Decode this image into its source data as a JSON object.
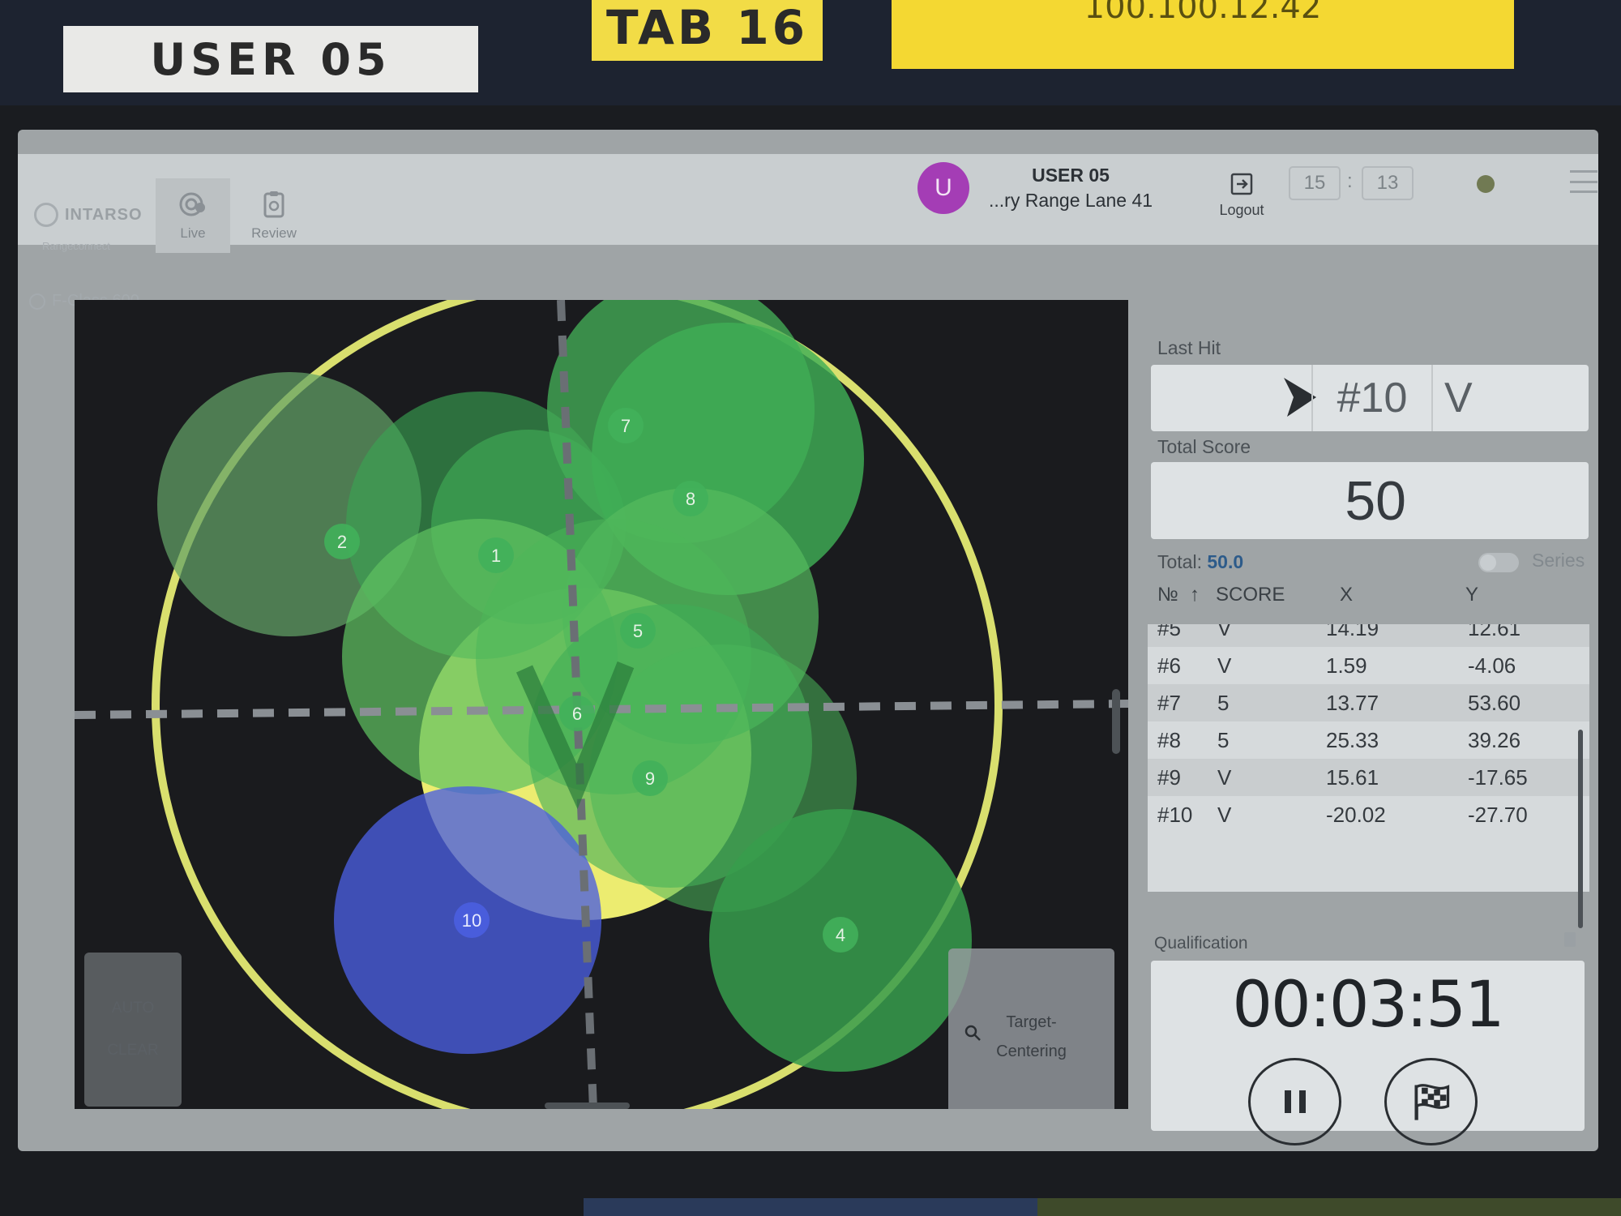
{
  "stickers": {
    "user": "USER 05",
    "tab": "TAB 16",
    "ip": "100.100.12.42"
  },
  "app": {
    "brand": "INTARSO",
    "brand_sub": "Rangeconnect",
    "nav": [
      {
        "label": "Live",
        "icon": "target-icon"
      },
      {
        "label": "Review",
        "icon": "clipboard-icon"
      }
    ],
    "user": {
      "avatar_letter": "U",
      "name": "USER 05",
      "lane": "...ry Range Lane 41"
    },
    "logout_label": "Logout",
    "clock": {
      "hours": "15",
      "separator": ":",
      "minutes": "13"
    },
    "device_label": "F-Class 600"
  },
  "target": {
    "auto_clear": {
      "line1": "AUTO",
      "line2": "CLEAR"
    },
    "centering_button": {
      "line1": "Target-",
      "line2": "Centering"
    },
    "shots": [
      {
        "n": "1",
        "color": "#41b05a"
      },
      {
        "n": "2",
        "color": "#41b05a"
      },
      {
        "n": "4",
        "color": "#41b05a"
      },
      {
        "n": "5",
        "color": "#41b05a"
      },
      {
        "n": "6",
        "color": "#41b05a"
      },
      {
        "n": "7",
        "color": "#41b05a"
      },
      {
        "n": "8",
        "color": "#41b05a"
      },
      {
        "n": "9",
        "color": "#41b05a"
      },
      {
        "n": "10",
        "color": "#4a5ee0"
      }
    ]
  },
  "panel": {
    "last_hit_label": "Last Hit",
    "last_hit_shot": "#10",
    "last_hit_score": "V",
    "total_score_label": "Total Score",
    "total_score": "50",
    "total_prefix": "Total:",
    "total_value": "50.0",
    "series_label": "Series",
    "table": {
      "columns": [
        "№",
        "SCORE",
        "X",
        "Y"
      ],
      "rows": [
        {
          "no": "#5",
          "score": "V",
          "x": "14.19",
          "y": "12.61"
        },
        {
          "no": "#6",
          "score": "V",
          "x": "1.59",
          "y": "-4.06"
        },
        {
          "no": "#7",
          "score": "5",
          "x": "13.77",
          "y": "53.60"
        },
        {
          "no": "#8",
          "score": "5",
          "x": "25.33",
          "y": "39.26"
        },
        {
          "no": "#9",
          "score": "V",
          "x": "15.61",
          "y": "-17.65"
        },
        {
          "no": "#10",
          "score": "V",
          "x": "-20.02",
          "y": "-27.70"
        }
      ]
    },
    "qualification_label": "Qualification",
    "timer": "00:03:51"
  },
  "colors": {
    "accent_blue": "#2d5b8a",
    "avatar": "#a43db5",
    "ring_yellow": "#d9df6e",
    "shot_green": "#41b05a",
    "last_shot_blue": "#4a5ee0"
  }
}
